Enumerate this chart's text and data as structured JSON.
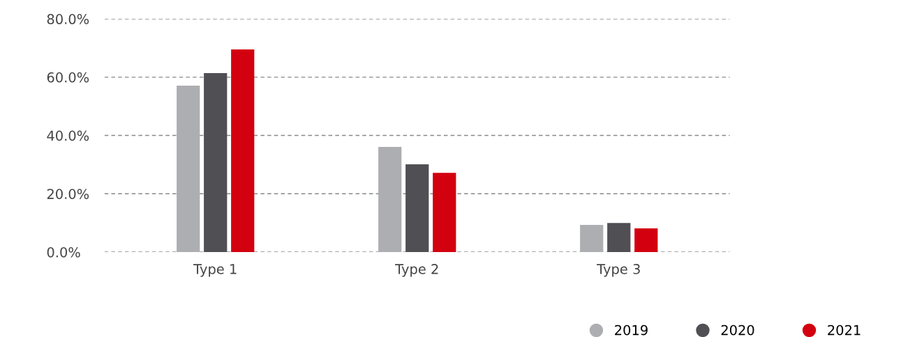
{
  "chart_data": {
    "type": "bar",
    "categories": [
      "Type 1",
      "Type 2",
      "Type 3"
    ],
    "series": [
      {
        "name": "2019",
        "color": "#adaeb1",
        "values": [
          57.1,
          36.1,
          9.3
        ]
      },
      {
        "name": "2020",
        "color": "#504f54",
        "values": [
          61.4,
          30.1,
          10.0
        ]
      },
      {
        "name": "2021",
        "color": "#d3000f",
        "values": [
          69.5,
          27.2,
          8.1
        ]
      }
    ],
    "ylim": [
      0,
      80
    ],
    "yticks": [
      {
        "value": 0,
        "label": "0.0%"
      },
      {
        "value": 20,
        "label": "20.0%"
      },
      {
        "value": 40,
        "label": "40.0%"
      },
      {
        "value": 60,
        "label": "60.0%"
      },
      {
        "value": 80,
        "label": "80.0%"
      }
    ],
    "grid": "y",
    "legend": "bottom right"
  }
}
